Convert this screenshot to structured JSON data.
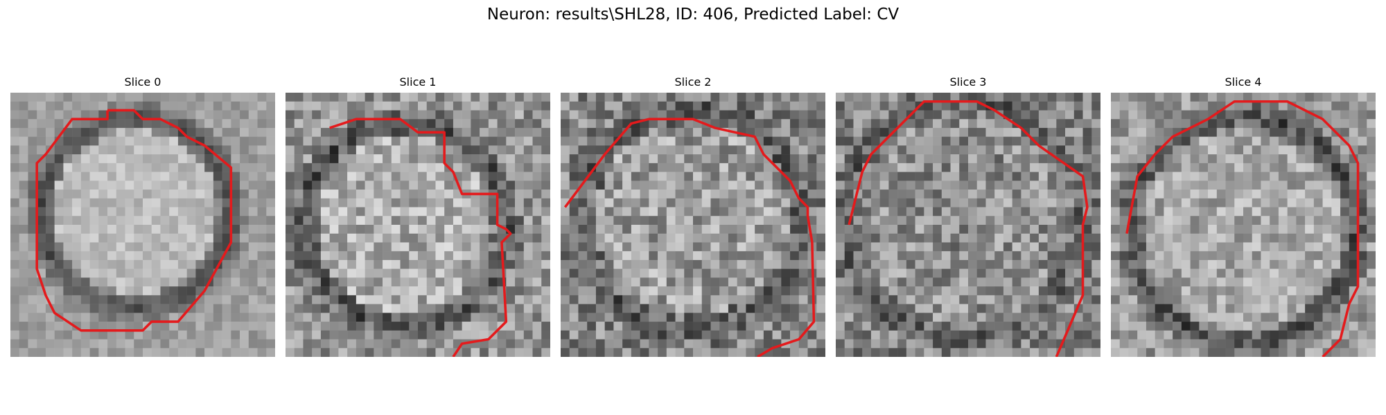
{
  "figure": {
    "title": "Neuron: results\\SHL28, ID: 406, Predicted Label: CV"
  },
  "panels": [
    {
      "label": "Slice 0"
    },
    {
      "label": "Slice 1"
    },
    {
      "label": "Slice 2"
    },
    {
      "label": "Slice 3"
    },
    {
      "label": "Slice 4"
    }
  ],
  "colors": {
    "contour": "#e41a1c",
    "background": "#ffffff"
  }
}
